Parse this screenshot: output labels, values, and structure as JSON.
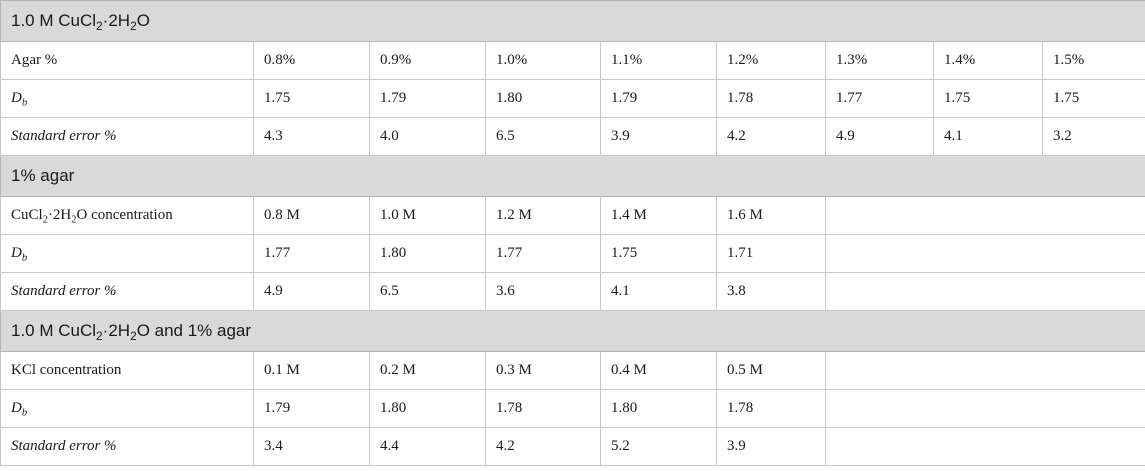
{
  "sections": [
    {
      "title_parts": [
        "1.0 M CuCl",
        "2",
        "·2H",
        "2",
        "O"
      ],
      "rows": [
        {
          "label": "Agar %",
          "cells": [
            "0.8%",
            "0.9%",
            "1.0%",
            "1.1%",
            "1.2%",
            "1.3%",
            "1.4%",
            "1.5%"
          ]
        },
        {
          "label_parts": [
            "D",
            "b"
          ],
          "cells": [
            "1.75",
            "1.79",
            "1.80",
            "1.79",
            "1.78",
            "1.77",
            "1.75",
            "1.75"
          ]
        },
        {
          "label": "Standard error %",
          "cells": [
            "4.3",
            "4.0",
            "6.5",
            "3.9",
            "4.2",
            "4.9",
            "4.1",
            "3.2"
          ]
        }
      ]
    },
    {
      "title": "1% agar",
      "rows": [
        {
          "label_parts": [
            "CuCl",
            "2",
            "·2H",
            "2",
            "O concentration"
          ],
          "cells": [
            "0.8 M",
            "1.0 M",
            "1.2 M",
            "1.4 M",
            "1.6 M"
          ]
        },
        {
          "label_parts": [
            "D",
            "b"
          ],
          "cells": [
            "1.77",
            "1.80",
            "1.77",
            "1.75",
            "1.71"
          ]
        },
        {
          "label": "Standard error %",
          "cells": [
            "4.9",
            "6.5",
            "3.6",
            "4.1",
            "3.8"
          ]
        }
      ]
    },
    {
      "title_parts": [
        "1.0 M CuCl",
        "2",
        "·2H",
        "2",
        "O and 1% agar"
      ],
      "rows": [
        {
          "label": "KCl concentration",
          "cells": [
            "0.1 M",
            "0.2 M",
            "0.3 M",
            "0.4 M",
            "0.5 M"
          ]
        },
        {
          "label_parts": [
            "D",
            "b"
          ],
          "cells": [
            "1.79",
            "1.80",
            "1.78",
            "1.80",
            "1.78"
          ]
        },
        {
          "label": "Standard error %",
          "cells": [
            "3.4",
            "4.4",
            "4.2",
            "5.2",
            "3.9"
          ]
        }
      ]
    }
  ]
}
